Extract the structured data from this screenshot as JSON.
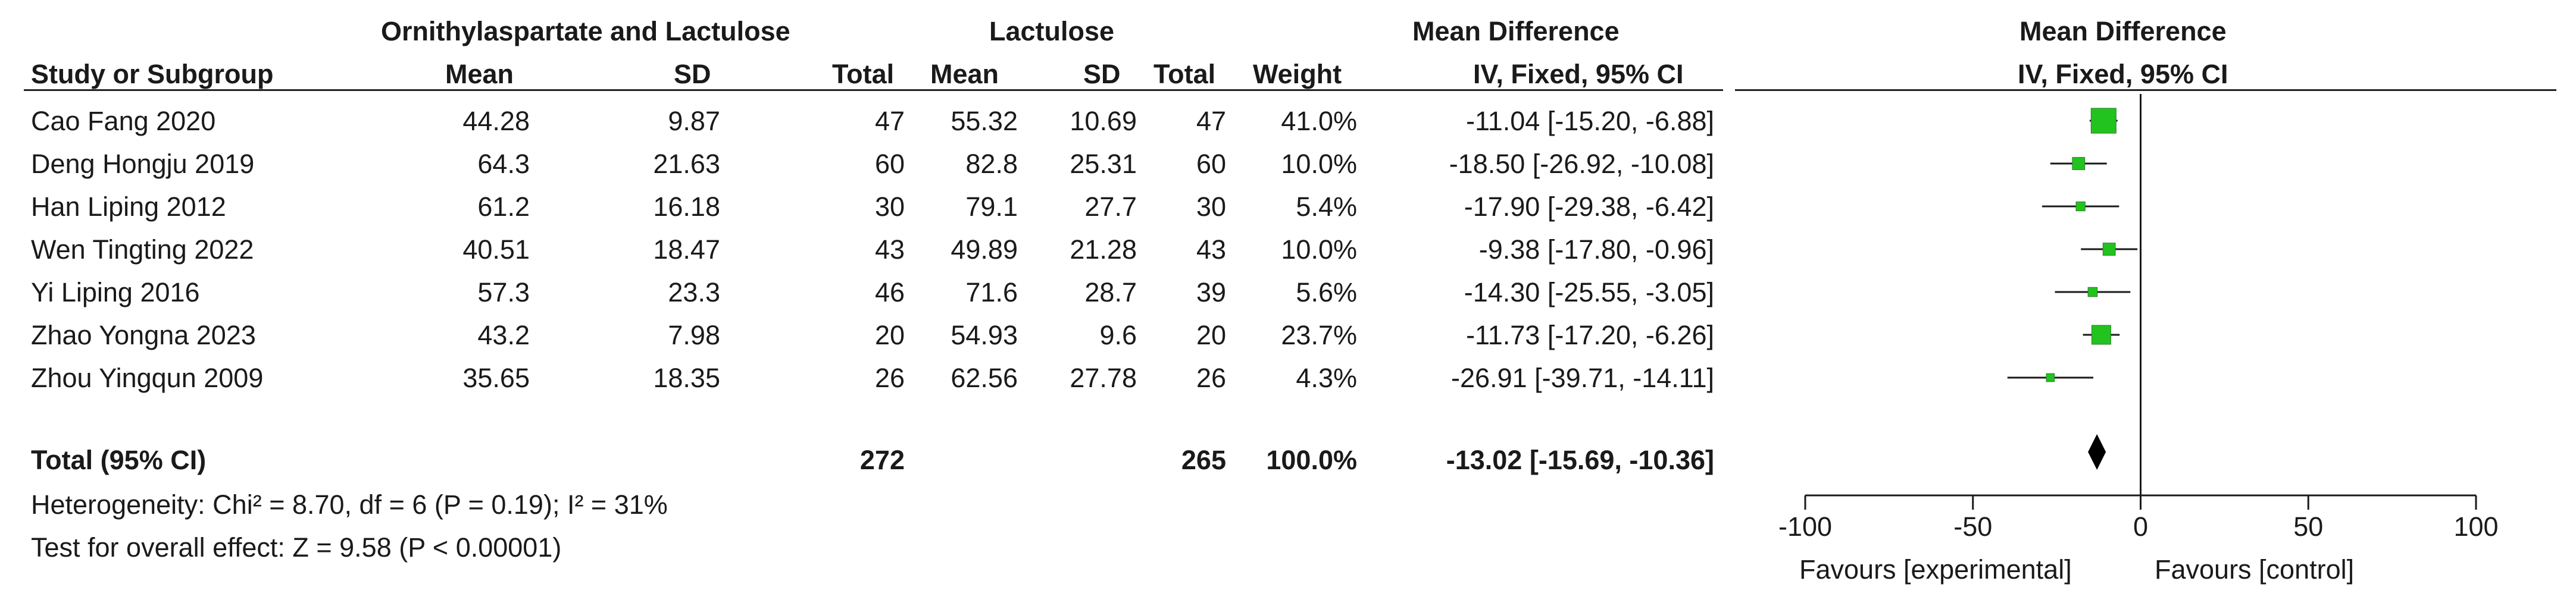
{
  "header": {
    "group1_label": "Ornithylaspartate and Lactulose",
    "group2_label": "Lactulose",
    "effect_label": "Mean Difference",
    "plot_label": "Mean Difference",
    "col_study": "Study or Subgroup",
    "col_mean1": "Mean",
    "col_sd1": "SD",
    "col_total1": "Total",
    "col_mean2": "Mean",
    "col_sd2": "SD",
    "col_total2": "Total",
    "col_weight": "Weight",
    "col_effect": "IV, Fixed, 95% CI",
    "plot_method": "IV, Fixed, 95% CI"
  },
  "studies": [
    {
      "name": "Cao Fang 2020",
      "mean1": "44.28",
      "sd1": "9.87",
      "total1": "47",
      "mean2": "55.32",
      "sd2": "10.69",
      "total2": "47",
      "weight": "41.0%",
      "ci_text": "-11.04 [-15.20, -6.88]"
    },
    {
      "name": "Deng Hongju 2019",
      "mean1": "64.3",
      "sd1": "21.63",
      "total1": "60",
      "mean2": "82.8",
      "sd2": "25.31",
      "total2": "60",
      "weight": "10.0%",
      "ci_text": "-18.50 [-26.92, -10.08]"
    },
    {
      "name": "Han Liping 2012",
      "mean1": "61.2",
      "sd1": "16.18",
      "total1": "30",
      "mean2": "79.1",
      "sd2": "27.7",
      "total2": "30",
      "weight": "5.4%",
      "ci_text": "-17.90 [-29.38, -6.42]"
    },
    {
      "name": "Wen Tingting 2022",
      "mean1": "40.51",
      "sd1": "18.47",
      "total1": "43",
      "mean2": "49.89",
      "sd2": "21.28",
      "total2": "43",
      "weight": "10.0%",
      "ci_text": "-9.38 [-17.80, -0.96]"
    },
    {
      "name": "Yi Liping 2016",
      "mean1": "57.3",
      "sd1": "23.3",
      "total1": "46",
      "mean2": "71.6",
      "sd2": "28.7",
      "total2": "39",
      "weight": "5.6%",
      "ci_text": "-14.30 [-25.55, -3.05]"
    },
    {
      "name": "Zhao Yongna 2023",
      "mean1": "43.2",
      "sd1": "7.98",
      "total1": "20",
      "mean2": "54.93",
      "sd2": "9.6",
      "total2": "20",
      "weight": "23.7%",
      "ci_text": "-11.73 [-17.20, -6.26]"
    },
    {
      "name": "Zhou Yingqun 2009",
      "mean1": "35.65",
      "sd1": "18.35",
      "total1": "26",
      "mean2": "62.56",
      "sd2": "27.78",
      "total2": "26",
      "weight": "4.3%",
      "ci_text": "-26.91 [-39.71, -14.11]"
    }
  ],
  "total": {
    "label": "Total (95% CI)",
    "total1": "272",
    "total2": "265",
    "weight": "100.0%",
    "ci_text": "-13.02 [-15.69, -10.36]"
  },
  "heterogeneity": "Heterogeneity: Chi² = 8.70, df = 6 (P = 0.19); I² = 31%",
  "overall_effect": "Test for overall effect: Z = 9.58 (P < 0.00001)",
  "axis": {
    "favours_left": "Favours [experimental]",
    "favours_right": "Favours [control]"
  },
  "colors": {
    "marker": "#22c31f",
    "line": "#1a1a1a",
    "diamond": "#000000"
  },
  "chart_data": {
    "type": "forest",
    "xlim": [
      -100,
      100
    ],
    "ticks": [
      -100,
      -50,
      0,
      50,
      100
    ],
    "tick_labels": [
      "-100",
      "-50",
      "0",
      "50",
      "100"
    ],
    "studies": [
      {
        "name": "Cao Fang 2020",
        "md": -11.04,
        "lo": -15.2,
        "hi": -6.88,
        "weight": 41.0
      },
      {
        "name": "Deng Hongju 2019",
        "md": -18.5,
        "lo": -26.92,
        "hi": -10.08,
        "weight": 10.0
      },
      {
        "name": "Han Liping 2012",
        "md": -17.9,
        "lo": -29.38,
        "hi": -6.42,
        "weight": 5.4
      },
      {
        "name": "Wen Tingting 2022",
        "md": -9.38,
        "lo": -17.8,
        "hi": -0.96,
        "weight": 10.0
      },
      {
        "name": "Yi Liping 2016",
        "md": -14.3,
        "lo": -25.55,
        "hi": -3.05,
        "weight": 5.6
      },
      {
        "name": "Zhao Yongna 2023",
        "md": -11.73,
        "lo": -17.2,
        "hi": -6.26,
        "weight": 23.7
      },
      {
        "name": "Zhou Yingqun 2009",
        "md": -26.91,
        "lo": -39.71,
        "hi": -14.11,
        "weight": 4.3
      }
    ],
    "pooled": {
      "md": -13.02,
      "lo": -15.69,
      "hi": -10.36
    }
  }
}
